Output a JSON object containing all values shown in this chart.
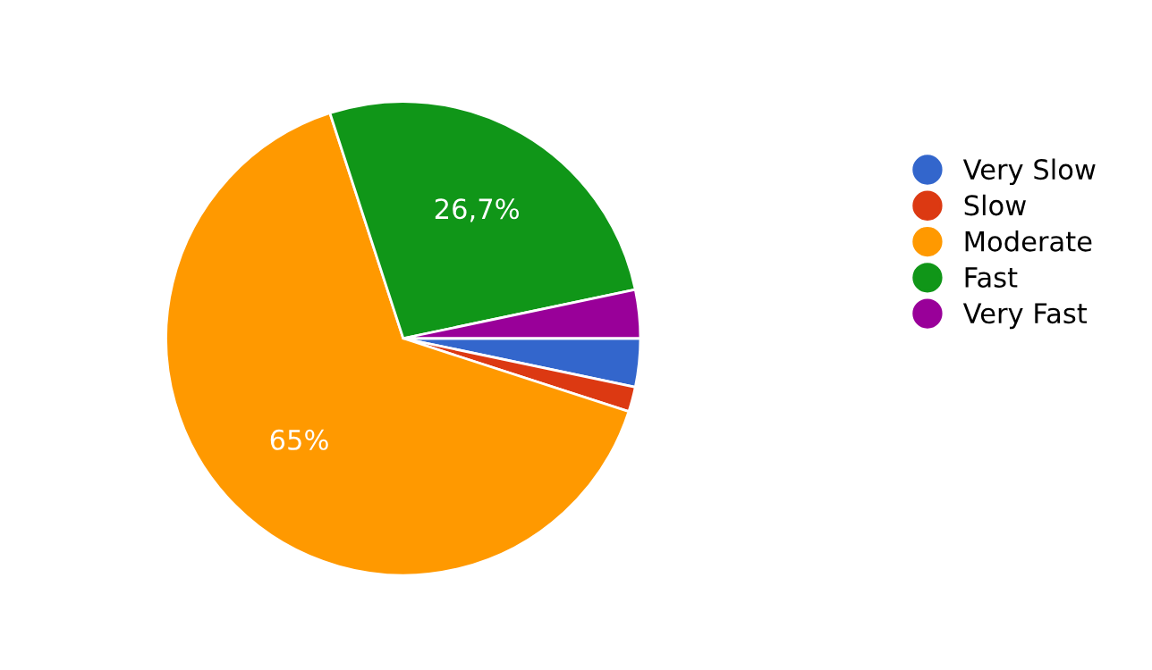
{
  "chart_data": {
    "type": "pie",
    "categories": [
      "Very Slow",
      "Slow",
      "Moderate",
      "Fast",
      "Very Fast"
    ],
    "values": [
      3.3,
      1.7,
      65,
      26.7,
      3.3
    ],
    "colors": [
      "#3366cc",
      "#dc3912",
      "#ff9900",
      "#109618",
      "#990099"
    ],
    "value_labels": [
      null,
      null,
      "65%",
      "26,7%",
      null
    ],
    "legend": "right"
  }
}
